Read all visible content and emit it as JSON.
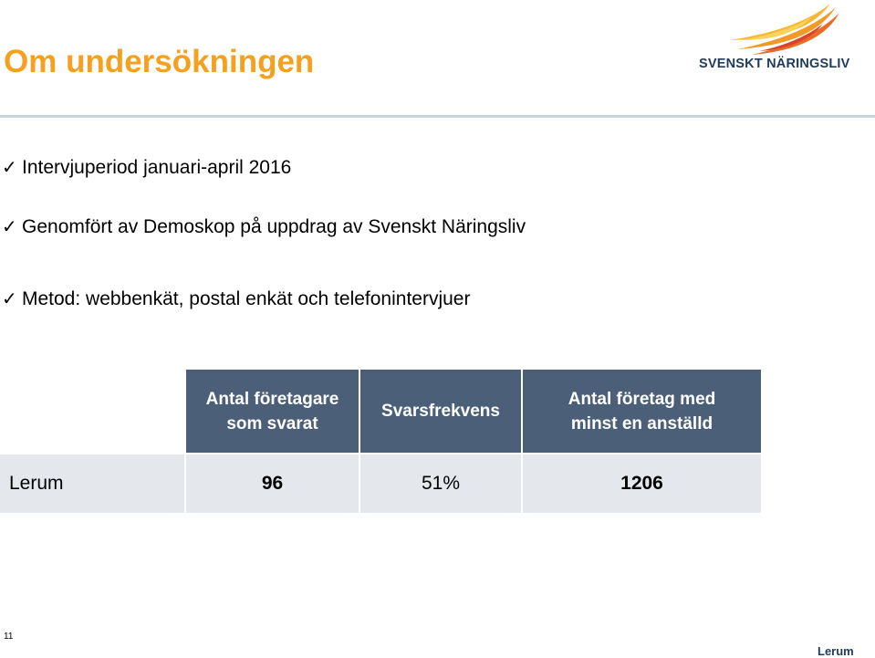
{
  "slide": {
    "title": "Om undersökningen",
    "logo_text": "SVENSKT NÄRINGSLIV",
    "bullets": [
      "Intervjuperiod januari-april 2016",
      "Genomfört av Demoskop på uppdrag av Svenskt Näringsliv",
      "Metod: webbenkät, postal enkät och telefonintervjuer"
    ],
    "bullet_icon": "check-icon",
    "table": {
      "headers": [
        "",
        "Antal företagare som svarat",
        "Svarsfrekvens",
        "Antal företag med minst en anställd"
      ],
      "rows": [
        [
          "Lerum",
          "96",
          "51%",
          "1206"
        ]
      ]
    },
    "page_number": "11",
    "footer": "Lerum"
  },
  "colors": {
    "title": "#f5a01e",
    "header_bg": "#4b6078",
    "row_bg": "#e4e8ed",
    "logo_text": "#1f3b5b"
  }
}
